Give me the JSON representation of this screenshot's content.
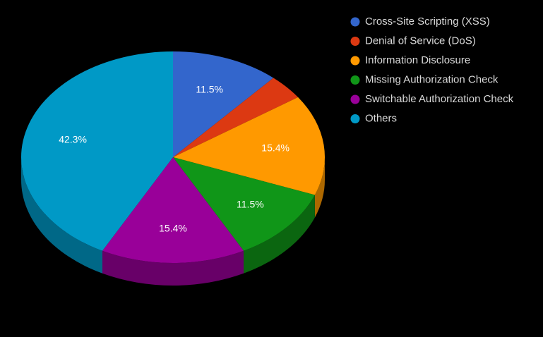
{
  "chart_data": {
    "type": "pie",
    "categories": [
      "Cross-Site Scripting (XSS)",
      "Denial of Service (DoS)",
      "Information Disclosure",
      "Missing Authorization Check",
      "Switchable Authorization Check",
      "Others"
    ],
    "values": [
      11.5,
      3.9,
      15.4,
      11.5,
      15.4,
      42.3
    ],
    "value_labels": [
      "11.5%",
      null,
      "15.4%",
      "11.5%",
      "15.4%",
      "42.3%"
    ],
    "colors": [
      "#3366cc",
      "#dc3912",
      "#ff9900",
      "#109618",
      "#990099",
      "#0099c6"
    ],
    "legend": "right"
  }
}
